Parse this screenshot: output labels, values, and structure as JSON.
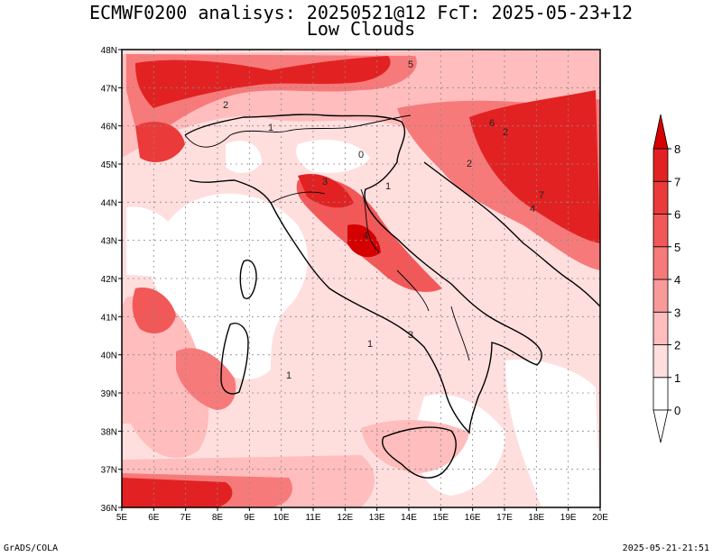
{
  "title": {
    "line1": "ECMWF0200 analisys: 20250521@12 FcT: 2025-05-23+12",
    "line2": "Low Clouds"
  },
  "map": {
    "lon_range": [
      5,
      20
    ],
    "lat_range": [
      36,
      48
    ],
    "lon_ticks": [
      "5E",
      "6E",
      "7E",
      "8E",
      "9E",
      "10E",
      "11E",
      "12E",
      "13E",
      "14E",
      "15E",
      "16E",
      "17E",
      "18E",
      "19E",
      "20E"
    ],
    "lat_ticks": [
      "36N",
      "37N",
      "38N",
      "39N",
      "40N",
      "41N",
      "42N",
      "43N",
      "44N",
      "45N",
      "46N",
      "47N",
      "48N"
    ],
    "gridlines": "dotted",
    "contour_labels": [
      "2",
      "1",
      "3",
      "4",
      "5",
      "1",
      "2",
      "0",
      "4",
      "3",
      "1",
      "6",
      "7",
      "2",
      "1"
    ]
  },
  "colorbar": {
    "levels": [
      "0",
      "1",
      "2",
      "3",
      "4",
      "5",
      "6",
      "7",
      "8"
    ],
    "colors": [
      "#ffffff",
      "#ffdede",
      "#ffbdbd",
      "#f99a9a",
      "#f77a7a",
      "#f25858",
      "#ea3a3a",
      "#e22222",
      "#d50000"
    ]
  },
  "footer": {
    "credit": "GrADS/COLA",
    "timestamp": "2025-05-21-21:51"
  }
}
